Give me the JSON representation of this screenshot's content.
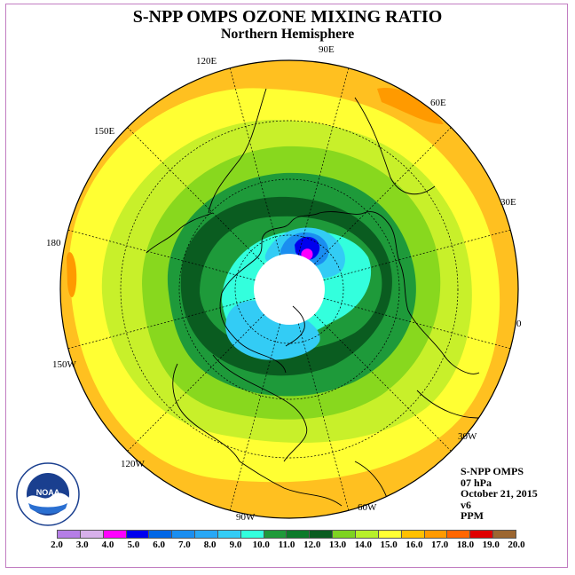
{
  "title": "S-NPP OMPS OZONE MIXING RATIO",
  "subtitle": "Northern Hemisphere",
  "longitude_labels": [
    "90E",
    "60E",
    "30E",
    "0",
    "30W",
    "60W",
    "90W",
    "120W",
    "150W",
    "180",
    "150E",
    "120E"
  ],
  "info": {
    "instrument": "S-NPP OMPS",
    "level": "07 hPa",
    "date": "October 21, 2015",
    "version": "v6",
    "units": "PPM"
  },
  "logo": {
    "name": "NOAA",
    "text": "NOAA"
  },
  "colorbar": {
    "ticks": [
      "2.0",
      "3.0",
      "4.0",
      "5.0",
      "6.0",
      "7.0",
      "8.0",
      "9.0",
      "10.0",
      "11.0",
      "12.0",
      "13.0",
      "14.0",
      "15.0",
      "16.0",
      "17.0",
      "18.0",
      "19.0",
      "20.0"
    ],
    "colors": [
      "#b57ee6",
      "#d7b0ea",
      "#ff00ff",
      "#0000ee",
      "#0066e6",
      "#1a8ef0",
      "#29a8f5",
      "#33ccf5",
      "#33ffdd",
      "#1f9a3a",
      "#0d7a2a",
      "#0a5c20",
      "#7ed321",
      "#b7f02a",
      "#ffff33",
      "#ffc000",
      "#ff9a00",
      "#ff6600",
      "#e00000",
      "#9c6630"
    ]
  },
  "map_colors": {
    "ozone_16": "#ffc020",
    "ozone_15": "#ffff33",
    "ozone_14": "#c8f02a",
    "ozone_13": "#88d81e",
    "ozone_12": "#1e9a3a",
    "ozone_11": "#0a5c20",
    "ozone_10": "#33ffdd",
    "ozone_9": "#33ccf5",
    "ozone_8": "#1a8ef0",
    "ozone_6": "#0000ee",
    "ozone_4": "#ff00ff",
    "ozone_17": "#ff9a00",
    "no_data": "#ffffff"
  }
}
